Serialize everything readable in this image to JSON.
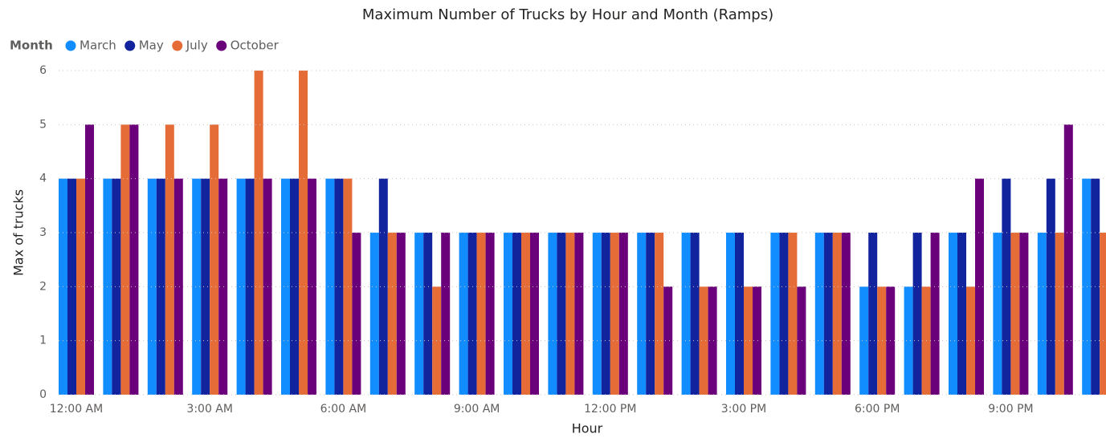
{
  "chart_data": {
    "type": "bar",
    "title": "Maximum Number of Trucks by Hour and Month (Ramps)",
    "legend_title": "Month",
    "x_label": "Hour",
    "y_label": "Max of trucks",
    "categories": [
      "12:00 AM",
      null,
      null,
      "3:00 AM",
      null,
      null,
      "6:00 AM",
      null,
      null,
      "9:00 AM",
      null,
      null,
      "12:00 PM",
      null,
      null,
      "3:00 PM",
      null,
      null,
      "6:00 PM",
      null,
      null,
      "9:00 PM",
      null,
      null
    ],
    "series": [
      {
        "name": "March",
        "color": "#118DFF",
        "values": [
          4,
          4,
          4,
          4,
          4,
          4,
          4,
          3,
          3,
          3,
          3,
          3,
          3,
          3,
          3,
          3,
          3,
          3,
          2,
          2,
          3,
          3,
          3,
          4
        ]
      },
      {
        "name": "May",
        "color": "#12239E",
        "values": [
          4,
          4,
          4,
          4,
          4,
          4,
          4,
          4,
          3,
          3,
          3,
          3,
          3,
          3,
          3,
          3,
          3,
          3,
          3,
          3,
          3,
          4,
          4,
          4
        ]
      },
      {
        "name": "July",
        "color": "#E66C37",
        "values": [
          4,
          5,
          5,
          5,
          6,
          6,
          4,
          3,
          2,
          3,
          3,
          3,
          3,
          3,
          2,
          2,
          3,
          3,
          2,
          2,
          2,
          3,
          3,
          3
        ]
      },
      {
        "name": "October",
        "color": "#6B007B",
        "values": [
          5,
          5,
          4,
          4,
          4,
          4,
          3,
          3,
          3,
          3,
          3,
          3,
          3,
          2,
          2,
          2,
          2,
          3,
          2,
          3,
          4,
          3,
          5,
          null
        ]
      }
    ],
    "ylim": [
      0,
      6
    ],
    "yticks": [
      0,
      1,
      2,
      3,
      4,
      5,
      6
    ],
    "grid": true
  }
}
